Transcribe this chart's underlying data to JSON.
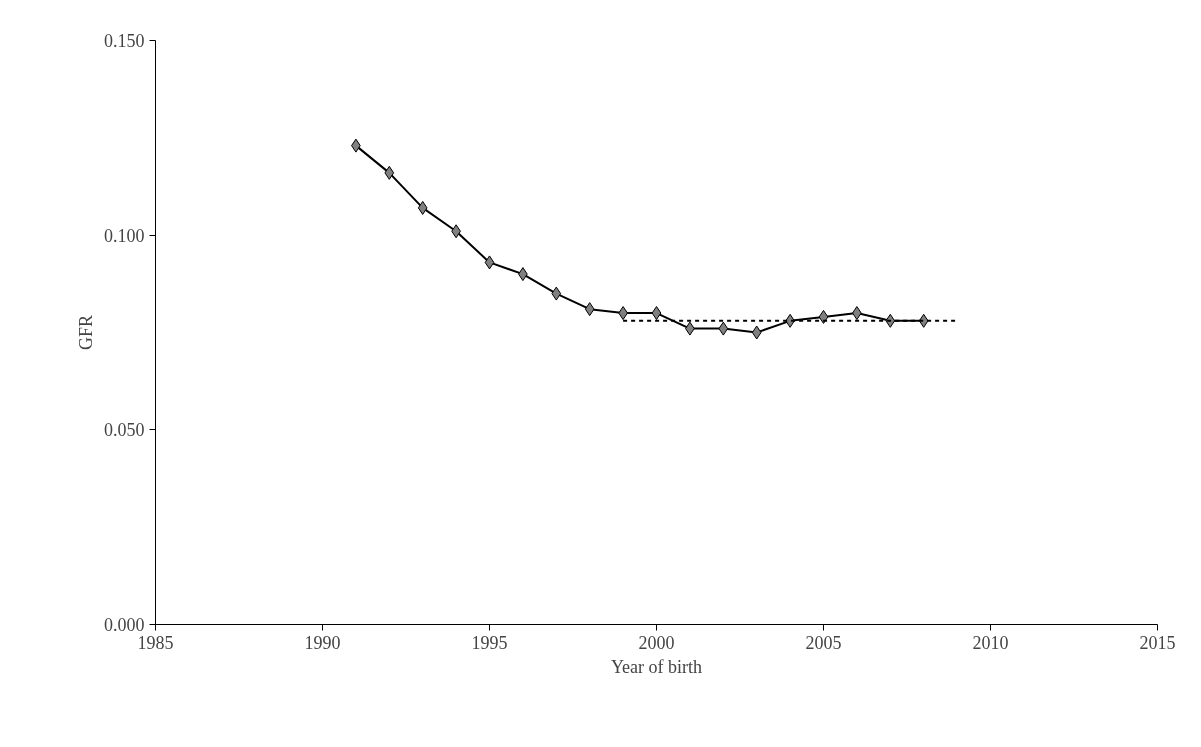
{
  "chart_data": {
    "type": "line",
    "xlabel": "Year of birth",
    "ylabel": "GFR",
    "x": [
      1991,
      1992,
      1993,
      1994,
      1995,
      1996,
      1997,
      1998,
      1999,
      2000,
      2001,
      2002,
      2003,
      2004,
      2005,
      2006,
      2007,
      2008
    ],
    "series": [
      {
        "color": "#808080",
        "marker": "diamond",
        "line_style": "solid",
        "values": [
          0.123,
          0.116,
          0.107,
          0.101,
          0.093,
          0.09,
          0.085,
          0.081,
          0.08,
          0.08,
          0.076,
          0.076,
          0.075,
          0.078,
          0.079,
          0.08,
          0.078,
          0.078
        ]
      },
      {
        "type": "line",
        "color": "#000000",
        "marker": "none",
        "line_style": "dotted",
        "x": [
          1999,
          2009
        ],
        "values": [
          0.078,
          0.078
        ]
      }
    ],
    "xlim": [
      1985,
      2015
    ],
    "xticks": [
      1985,
      1990,
      1995,
      2000,
      2005,
      2010,
      2015
    ],
    "ylim": [
      0,
      0.15
    ],
    "yticks": [
      {
        "value": 0,
        "label": "0.000"
      },
      {
        "value": 0.05,
        "label": "0.050"
      },
      {
        "value": 0.1,
        "label": "0.100"
      },
      {
        "value": 0.15,
        "label": "0.150"
      }
    ],
    "grid": false
  }
}
